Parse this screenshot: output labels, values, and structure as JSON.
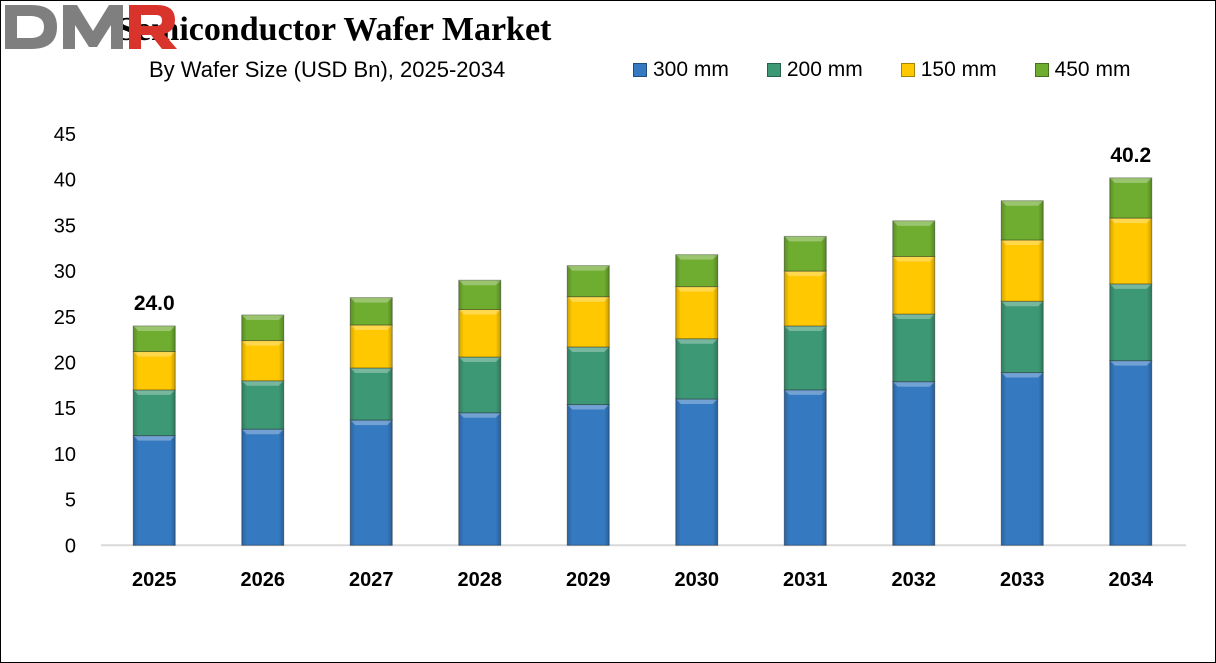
{
  "chart_data": {
    "type": "bar",
    "stacked": true,
    "title": "Semiconductor Wafer Market",
    "subtitle": "By Wafer Size (USD Bn), 2025-2034",
    "xlabel": "",
    "ylabel": "",
    "ylim": [
      0,
      45
    ],
    "yticks": [
      0,
      5,
      10,
      15,
      20,
      25,
      30,
      35,
      40,
      45
    ],
    "grid": false,
    "legend_position": "top-right",
    "categories": [
      "2025",
      "2026",
      "2027",
      "2028",
      "2029",
      "2030",
      "2031",
      "2032",
      "2033",
      "2034"
    ],
    "series": [
      {
        "name": "300 mm",
        "color": "#3579c0",
        "values": [
          12.0,
          12.7,
          13.7,
          14.5,
          15.4,
          16.0,
          17.0,
          17.9,
          18.9,
          20.2
        ]
      },
      {
        "name": "200 mm",
        "color": "#3d9875",
        "values": [
          5.0,
          5.3,
          5.7,
          6.1,
          6.3,
          6.6,
          7.0,
          7.4,
          7.8,
          8.4
        ]
      },
      {
        "name": "150 mm",
        "color": "#ffc800",
        "values": [
          4.2,
          4.4,
          4.7,
          5.2,
          5.5,
          5.7,
          6.0,
          6.3,
          6.7,
          7.2
        ]
      },
      {
        "name": "450 mm",
        "color": "#6fad30",
        "values": [
          2.8,
          2.8,
          3.0,
          3.2,
          3.4,
          3.5,
          3.8,
          3.9,
          4.3,
          4.4
        ]
      }
    ],
    "annotations": [
      {
        "category": "2025",
        "text": "24.0"
      },
      {
        "category": "2034",
        "text": "40.2"
      }
    ]
  },
  "logo": {
    "text": "DMR",
    "colors": [
      "#7f7f7f",
      "#7f7f7f",
      "#d9342b"
    ]
  }
}
